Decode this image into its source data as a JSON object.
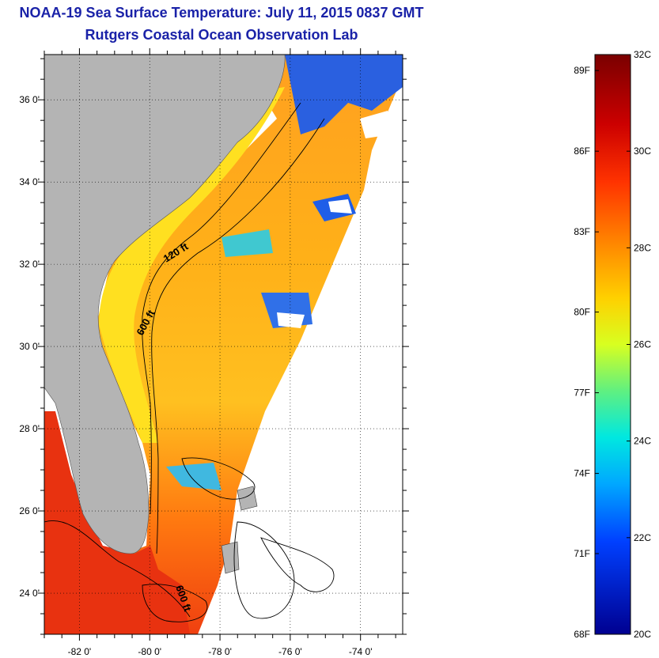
{
  "title": "NOAA-19 Sea Surface Temperature:  July 11, 2015 0837 GMT",
  "subtitle": "Rutgers Coastal Ocean Observation Lab",
  "map": {
    "lon_range": [
      -83.0,
      -72.8
    ],
    "lat_range": [
      23.0,
      37.1
    ],
    "lat_ticks": [
      {
        "label": "24 0'",
        "value": 24
      },
      {
        "label": "26 0'",
        "value": 26
      },
      {
        "label": "28 0'",
        "value": 28
      },
      {
        "label": "30 0'",
        "value": 30
      },
      {
        "label": "32 0'",
        "value": 32
      },
      {
        "label": "34 0'",
        "value": 34
      },
      {
        "label": "36 0'",
        "value": 36
      }
    ],
    "lon_ticks": [
      {
        "label": "-82 0'",
        "value": -82
      },
      {
        "label": "-80 0'",
        "value": -80
      },
      {
        "label": "-78 0'",
        "value": -78
      },
      {
        "label": "-76 0'",
        "value": -76
      },
      {
        "label": "-74 0'",
        "value": -74
      }
    ],
    "contour_labels": [
      "120 ft",
      "600 ft",
      "600 ft"
    ],
    "land_color": "#b4b4b4"
  },
  "colorbar": {
    "range_c": [
      20,
      32
    ],
    "fahrenheit_labels": [
      {
        "label": "89F",
        "value_c": 31.67
      },
      {
        "label": "86F",
        "value_c": 30.0
      },
      {
        "label": "83F",
        "value_c": 28.33
      },
      {
        "label": "80F",
        "value_c": 26.67
      },
      {
        "label": "77F",
        "value_c": 25.0
      },
      {
        "label": "74F",
        "value_c": 23.33
      },
      {
        "label": "71F",
        "value_c": 21.67
      },
      {
        "label": "68F",
        "value_c": 20.0
      }
    ],
    "celsius_labels": [
      {
        "label": "32C",
        "value_c": 32
      },
      {
        "label": "30C",
        "value_c": 30
      },
      {
        "label": "28C",
        "value_c": 28
      },
      {
        "label": "26C",
        "value_c": 26
      },
      {
        "label": "24C",
        "value_c": 24
      },
      {
        "label": "22C",
        "value_c": 22
      },
      {
        "label": "20C",
        "value_c": 20
      }
    ]
  }
}
